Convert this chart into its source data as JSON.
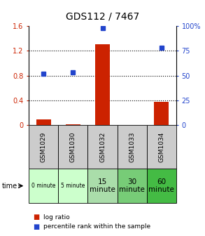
{
  "title": "GDS112 / 7467",
  "samples": [
    "GSM1029",
    "GSM1030",
    "GSM1032",
    "GSM1033",
    "GSM1034"
  ],
  "time_labels": [
    "0 minute",
    "5 minute",
    "15\nminute",
    "30\nminute",
    "60\nminute"
  ],
  "time_colors": [
    "#ccffcc",
    "#ccffcc",
    "#aaddaa",
    "#77cc77",
    "#44bb44"
  ],
  "log_ratio": [
    0.09,
    0.015,
    1.3,
    0.005,
    0.37
  ],
  "percentile_rank": [
    52,
    53,
    98,
    null,
    78
  ],
  "left_ylim": [
    0,
    1.6
  ],
  "right_ylim": [
    0,
    100
  ],
  "left_yticks": [
    0,
    0.4,
    0.8,
    1.2,
    1.6
  ],
  "right_yticks": [
    0,
    25,
    50,
    75,
    100
  ],
  "bar_color": "#cc2200",
  "dot_color": "#2244cc",
  "title_fontsize": 10,
  "tick_fontsize": 7,
  "dotted_lines": [
    0.4,
    0.8,
    1.2
  ],
  "background_color": "#ffffff",
  "sample_bg_color": "#cccccc",
  "legend_log_ratio": "log ratio",
  "legend_percentile": "percentile rank within the sample"
}
